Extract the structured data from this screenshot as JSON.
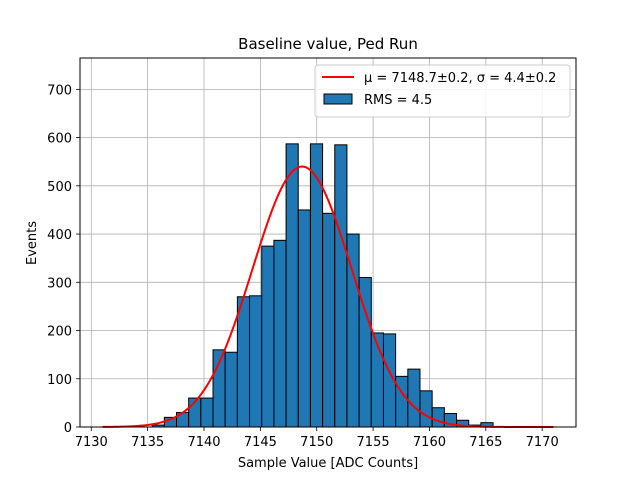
{
  "chart_data": {
    "type": "bar",
    "title": "Baseline value, Ped Run",
    "xlabel": "Sample Value [ADC Counts]",
    "ylabel": "Events",
    "xlim": [
      7129.0,
      7173.0
    ],
    "ylim": [
      0,
      765
    ],
    "xticks": [
      7130,
      7135,
      7140,
      7145,
      7150,
      7155,
      7160,
      7165,
      7170
    ],
    "yticks": [
      0,
      100,
      200,
      300,
      400,
      500,
      600,
      700
    ],
    "grid": true,
    "legend_position": "top-right",
    "histogram": {
      "name": "RMS = 4.5",
      "color": "#1f77b4",
      "bin_width": 1.08,
      "bin_start": 7135.4,
      "values": [
        4,
        20,
        30,
        60,
        60,
        160,
        155,
        270,
        272,
        375,
        387,
        587,
        450,
        587,
        443,
        585,
        400,
        310,
        195,
        193,
        105,
        120,
        75,
        40,
        28,
        14,
        4,
        9,
        1
      ]
    },
    "fit": {
      "name_mu": "μ = 7148.7±0.2",
      "name_sep": ", ",
      "name_sigma": "σ = 4.4±0.2",
      "color": "#ff0000",
      "mu": 7148.7,
      "sigma": 4.4,
      "amplitude": 540,
      "x_range": [
        7131,
        7171
      ]
    }
  }
}
